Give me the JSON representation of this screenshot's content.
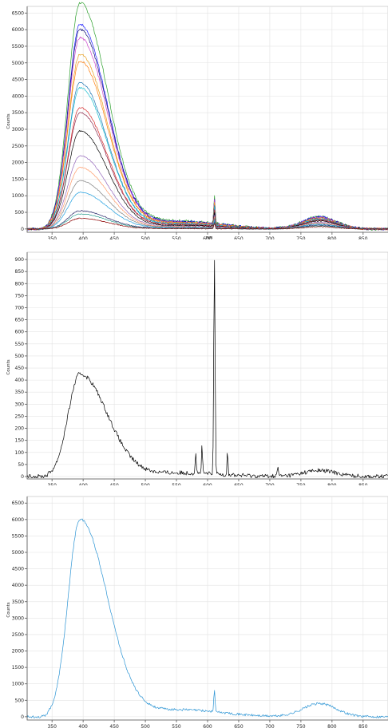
{
  "chart_data": [
    {
      "type": "line",
      "ylabel": "Counts",
      "xlabel": "nm",
      "xlim": [
        310,
        890
      ],
      "ylim": [
        -100,
        6700
      ],
      "xticks": [
        350,
        400,
        450,
        500,
        550,
        600,
        650,
        700,
        750,
        800,
        850
      ],
      "yticks": [
        0,
        500,
        1000,
        1500,
        2000,
        2500,
        3000,
        3500,
        4000,
        4500,
        5000,
        5500,
        6000,
        6500
      ],
      "grid": true,
      "series": [
        {
          "color": "#2ca02c",
          "peak": 6800,
          "tail_peak": 380
        },
        {
          "color": "#1a1aff",
          "peak": 6150,
          "tail_peak": 360
        },
        {
          "color": "#111177",
          "peak": 6000,
          "tail_peak": 350
        },
        {
          "color": "#cc44cc",
          "peak": 5750,
          "tail_peak": 340
        },
        {
          "color": "#e8a020",
          "peak": 5250,
          "tail_peak": 320
        },
        {
          "color": "#ff7f0e",
          "peak": 5050,
          "tail_peak": 310
        },
        {
          "color": "#1f77b4",
          "peak": 4400,
          "tail_peak": 300
        },
        {
          "color": "#17becf",
          "peak": 4250,
          "tail_peak": 290
        },
        {
          "color": "#d62728",
          "peak": 3650,
          "tail_peak": 270
        },
        {
          "color": "#8c2d4f",
          "peak": 3500,
          "tail_peak": 260
        },
        {
          "color": "#000000",
          "peak": 2950,
          "tail_peak": 240
        },
        {
          "color": "#9467bd",
          "peak": 2200,
          "tail_peak": 200
        },
        {
          "color": "#ff9966",
          "peak": 1850,
          "tail_peak": 180
        },
        {
          "color": "#7f7f7f",
          "peak": 1450,
          "tail_peak": 160
        },
        {
          "color": "#1f9fe0",
          "peak": 1100,
          "tail_peak": 140
        },
        {
          "color": "#222266",
          "peak": 550,
          "tail_peak": 110
        },
        {
          "color": "#2a9d8f",
          "peak": 450,
          "tail_peak": 90
        },
        {
          "color": "#8b0000",
          "peak": 320,
          "tail_peak": 70
        }
      ]
    },
    {
      "type": "line",
      "ylabel": "Counts",
      "xlabel": "",
      "xlim": [
        310,
        890
      ],
      "ylim": [
        -10,
        930
      ],
      "xticks": [
        350,
        400,
        450,
        500,
        550,
        600,
        650,
        700,
        750,
        800,
        850
      ],
      "yticks": [
        0,
        50,
        100,
        150,
        200,
        250,
        300,
        350,
        400,
        450,
        500,
        550,
        600,
        650,
        700,
        750,
        800,
        850,
        900
      ],
      "grid": true,
      "series": [
        {
          "color": "#000000",
          "peak": 425,
          "tail_peak": 25,
          "spike": 905
        }
      ]
    },
    {
      "type": "line",
      "ylabel": "Counts",
      "xlabel": "",
      "xlim": [
        310,
        890
      ],
      "ylim": [
        -100,
        6700
      ],
      "xticks": [
        350,
        400,
        450,
        500,
        550,
        600,
        650,
        700,
        750,
        800,
        850
      ],
      "yticks": [
        0,
        500,
        1000,
        1500,
        2000,
        2500,
        3000,
        3500,
        4000,
        4500,
        5000,
        5500,
        6000,
        6500
      ],
      "grid": true,
      "series": [
        {
          "color": "#2b94d4",
          "peak": 6000,
          "tail_peak": 400,
          "spike": 870
        }
      ]
    }
  ]
}
